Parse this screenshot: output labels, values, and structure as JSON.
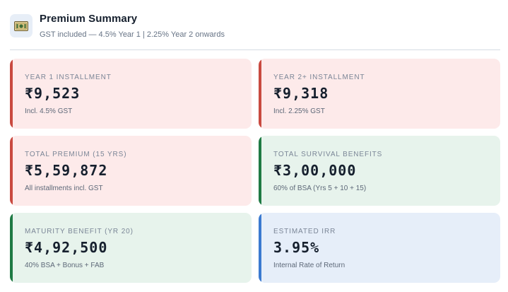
{
  "header": {
    "icon": "banknote-icon",
    "title": "Premium Summary",
    "subtitle": "GST included — 4.5% Year 1  |  2.25% Year 2 onwards"
  },
  "colors": {
    "red_accent": "#c94a40",
    "green_accent": "#1f7a44",
    "blue_accent": "#3b7ad0",
    "pink_bg": "#fdeaea",
    "green_bg": "#e7f3ec",
    "blue_bg": "#e6eef9"
  },
  "cards": [
    {
      "label": "YEAR 1 INSTALLMENT",
      "value": "₹9,523",
      "note": "Incl. 4.5% GST",
      "tone": "red"
    },
    {
      "label": "YEAR 2+ INSTALLMENT",
      "value": "₹9,318",
      "note": "Incl. 2.25% GST",
      "tone": "red"
    },
    {
      "label": "TOTAL PREMIUM (15 YRS)",
      "value": "₹5,59,872",
      "note": "All installments incl. GST",
      "tone": "red"
    },
    {
      "label": "TOTAL SURVIVAL BENEFITS",
      "value": "₹3,00,000",
      "note": "60% of BSA (Yrs 5 + 10 + 15)",
      "tone": "green"
    },
    {
      "label": "MATURITY BENEFIT (YR 20)",
      "value": "₹4,92,500",
      "note": "40% BSA + Bonus + FAB",
      "tone": "green"
    },
    {
      "label": "ESTIMATED IRR",
      "value": "3.95%",
      "note": "Internal Rate of Return",
      "tone": "blue"
    }
  ]
}
